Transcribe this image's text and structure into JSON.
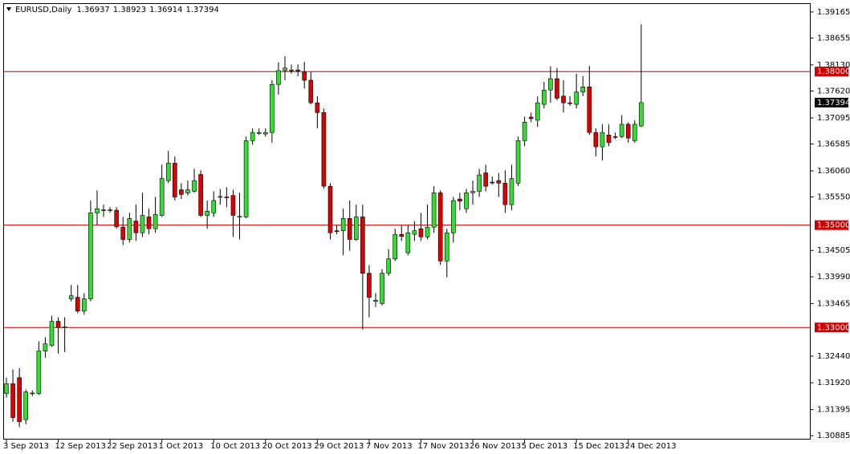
{
  "chart_data": {
    "type": "candlestick",
    "title": "EURUSD,Daily",
    "categories": [
      "3 Sep 2013",
      null,
      null,
      null,
      null,
      null,
      null,
      null,
      "12 Sep 2013",
      null,
      null,
      null,
      null,
      null,
      null,
      null,
      "22 Sep 2013",
      null,
      null,
      null,
      null,
      null,
      null,
      null,
      "1 Oct 2013",
      null,
      null,
      null,
      null,
      null,
      null,
      null,
      "10 Oct 2013",
      null,
      null,
      null,
      null,
      null,
      null,
      null,
      "20 Oct 2013",
      null,
      null,
      null,
      null,
      null,
      null,
      null,
      "29 Oct 2013",
      null,
      null,
      null,
      null,
      null,
      null,
      null,
      "7 Nov 2013",
      null,
      null,
      null,
      null,
      null,
      null,
      null,
      "17 Nov 2013",
      null,
      null,
      null,
      null,
      null,
      null,
      null,
      "26 Nov 2013",
      null,
      null,
      null,
      null,
      null,
      null,
      null,
      "5 Dec 2013",
      null,
      null,
      null,
      null,
      null,
      null,
      null,
      "15 Dec 2013",
      null,
      null,
      null,
      null,
      null,
      null,
      null,
      "24 Dec 2013",
      null,
      null
    ],
    "open": [
      1.3171,
      1.319,
      1.3202,
      1.312,
      1.3171,
      1.3171,
      1.3254,
      1.3265,
      1.3312,
      1.33,
      1.3356,
      1.3359,
      1.3332,
      1.3356,
      1.3524,
      1.3529,
      1.3529,
      1.3529,
      1.3496,
      1.3472,
      1.3508,
      1.3485,
      1.3516,
      1.3493,
      1.3519,
      1.3587,
      1.3621,
      1.3569,
      1.3563,
      1.3566,
      1.3599,
      1.3519,
      1.3524,
      1.3555,
      1.3555,
      1.3558,
      1.3516,
      1.3516,
      1.3665,
      1.3679,
      1.3678,
      1.3681,
      1.3775,
      1.3802,
      1.3802,
      1.3803,
      1.3799,
      1.3783,
      1.3739,
      1.372,
      1.3576,
      1.3489,
      1.3489,
      1.3513,
      1.3472,
      1.3516,
      1.3406,
      1.3351,
      1.3347,
      1.3406,
      1.3434,
      1.3482,
      1.3446,
      1.3482,
      1.3493,
      1.3477,
      1.3496,
      1.3563,
      1.343,
      1.3485,
      1.3551,
      1.3532,
      1.3563,
      1.3566,
      1.3602,
      1.3584,
      1.3587,
      1.3582,
      1.354,
      1.3582,
      1.3665,
      1.3711,
      1.3705,
      1.3736,
      1.3764,
      1.3786,
      1.3752,
      1.3739,
      1.3736,
      1.376,
      1.377,
      1.3681,
      1.3653,
      1.3676,
      1.3673,
      1.3673,
      1.3697,
      1.3665,
      1.36937
    ],
    "high": [
      1.3202,
      1.3218,
      1.3221,
      1.3179,
      1.3177,
      1.3273,
      1.3281,
      1.3323,
      1.332,
      1.332,
      1.3383,
      1.3383,
      1.3367,
      1.3548,
      1.3568,
      1.354,
      1.3535,
      1.3535,
      1.3516,
      1.3524,
      1.354,
      1.3563,
      1.3532,
      1.3555,
      1.3618,
      1.3645,
      1.3634,
      1.3582,
      1.3587,
      1.361,
      1.3607,
      1.3548,
      1.3566,
      1.3571,
      1.3574,
      1.3569,
      1.3563,
      1.3673,
      1.3689,
      1.3689,
      1.3689,
      1.3783,
      1.3818,
      1.383,
      1.3814,
      1.3814,
      1.3819,
      1.3799,
      1.3752,
      1.3728,
      1.3582,
      1.35,
      1.3532,
      1.3548,
      1.354,
      1.354,
      1.3422,
      1.3367,
      1.3414,
      1.3453,
      1.3493,
      1.35,
      1.35,
      1.3508,
      1.3524,
      1.354,
      1.3576,
      1.3568,
      1.3493,
      1.3555,
      1.3563,
      1.3571,
      1.3587,
      1.361,
      1.3618,
      1.3595,
      1.3602,
      1.3607,
      1.3618,
      1.3673,
      1.3712,
      1.372,
      1.3752,
      1.378,
      1.381,
      1.3807,
      1.3783,
      1.3752,
      1.3796,
      1.3791,
      1.3811,
      1.3689,
      1.3697,
      1.3697,
      1.3681,
      1.3715,
      1.3701,
      1.3705,
      1.38923
    ],
    "low": [
      1.3163,
      1.3116,
      1.3105,
      1.3111,
      1.3166,
      1.3168,
      1.3241,
      1.3262,
      1.3249,
      1.3252,
      1.3351,
      1.3328,
      1.3325,
      1.3351,
      1.35,
      1.3516,
      1.3524,
      1.3493,
      1.3461,
      1.3466,
      1.3469,
      1.3477,
      1.3482,
      1.3485,
      1.3516,
      1.3582,
      1.3548,
      1.3551,
      1.3558,
      1.3563,
      1.3516,
      1.3493,
      1.3516,
      1.354,
      1.3535,
      1.3477,
      1.3472,
      1.3513,
      1.3657,
      1.3676,
      1.3673,
      1.3661,
      1.3755,
      1.3783,
      1.3796,
      1.3791,
      1.3767,
      1.3736,
      1.3689,
      1.3571,
      1.3472,
      1.3482,
      1.3441,
      1.345,
      1.3469,
      1.3296,
      1.332,
      1.334,
      1.3343,
      1.3401,
      1.343,
      1.3469,
      1.3441,
      1.3469,
      1.3469,
      1.3472,
      1.3485,
      1.3422,
      1.3398,
      1.3466,
      1.3529,
      1.3524,
      1.354,
      1.3555,
      1.3566,
      1.3579,
      1.3555,
      1.3524,
      1.3529,
      1.3576,
      1.3654,
      1.3701,
      1.3692,
      1.3728,
      1.3739,
      1.3744,
      1.372,
      1.3733,
      1.3728,
      1.3752,
      1.3676,
      1.3634,
      1.3626,
      1.3654,
      1.3668,
      1.367,
      1.3661,
      1.3661,
      1.36914
    ],
    "close": [
      1.319,
      1.3124,
      1.3116,
      1.3174,
      1.3172,
      1.3254,
      1.3268,
      1.3312,
      1.33,
      1.3301,
      1.3362,
      1.3332,
      1.3356,
      1.3524,
      1.3532,
      1.353,
      1.353,
      1.3497,
      1.3472,
      1.3513,
      1.3485,
      1.3519,
      1.3493,
      1.3521,
      1.3591,
      1.3621,
      1.3555,
      1.356,
      1.3569,
      1.3587,
      1.3519,
      1.3527,
      1.3548,
      1.3556,
      1.3554,
      1.3519,
      1.3517,
      1.3665,
      1.3681,
      1.3681,
      1.3681,
      1.3775,
      1.3802,
      1.3807,
      1.3803,
      1.3802,
      1.3783,
      1.3739,
      1.372,
      1.3576,
      1.3485,
      1.3488,
      1.3513,
      1.3472,
      1.3516,
      1.3406,
      1.3359,
      1.3353,
      1.3406,
      1.3434,
      1.3482,
      1.3478,
      1.3485,
      1.3489,
      1.3477,
      1.3496,
      1.3563,
      1.343,
      1.3485,
      1.3548,
      1.3547,
      1.3563,
      1.3566,
      1.3598,
      1.3576,
      1.3583,
      1.3582,
      1.354,
      1.3591,
      1.3665,
      1.3701,
      1.3708,
      1.3739,
      1.3764,
      1.3786,
      1.3748,
      1.3739,
      1.3738,
      1.376,
      1.377,
      1.3681,
      1.3653,
      1.3681,
      1.3661,
      1.3672,
      1.3697,
      1.367,
      1.3697,
      1.37394
    ],
    "up_color": "#33dd33",
    "down_color": "#dd0000",
    "wick_color": "#000000",
    "ylim": [
      1.3081,
      1.3932
    ],
    "yticks": [
      1.39165,
      1.38655,
      {
        "value": 1.3813,
        "label": "1.38130"
      },
      {
        "value": 1.3762,
        "label": "1.37620"
      },
      1.37095,
      1.36585,
      {
        "value": 1.3606,
        "label": "1.36060"
      },
      {
        "value": 1.3555,
        "label": "1.35550"
      },
      1.34505,
      {
        "value": 1.3399,
        "label": "1.33990"
      },
      1.33465,
      {
        "value": 1.3244,
        "label": "1.32440"
      },
      {
        "value": 1.3192,
        "label": "1.31920"
      },
      1.31395,
      1.30885
    ],
    "levels": [
      {
        "value": 1.38,
        "label": "1.38000"
      },
      {
        "value": 1.35,
        "label": "1.35000"
      },
      {
        "value": 1.33,
        "label": "1.33000"
      }
    ],
    "level_color": "#cc0000"
  }
}
